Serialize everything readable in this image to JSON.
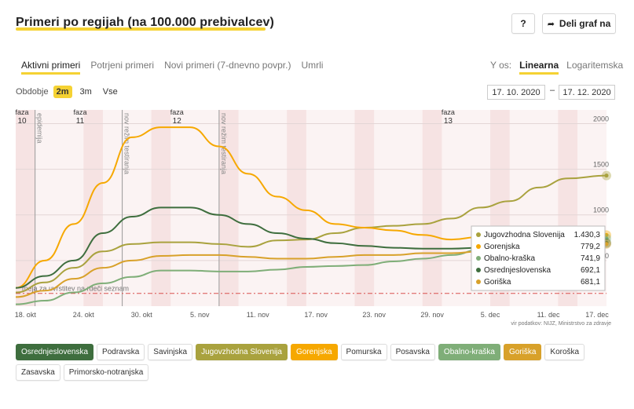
{
  "header": {
    "title": "Primeri po regijah (na 100.000 prebivalcev)",
    "help_label": "?",
    "share_label": "Deli graf na"
  },
  "tabs": [
    "Aktivni primeri",
    "Potrjeni primeri",
    "Novi primeri (7-dnevno povpr.)",
    "Umrli"
  ],
  "active_tab": 0,
  "y_axis": {
    "label": "Y os:",
    "options": [
      "Linearna",
      "Logaritemska"
    ],
    "active": 0
  },
  "period": {
    "label": "Obdobje",
    "options": [
      "2m",
      "3m",
      "Vse"
    ],
    "active": 0,
    "from": "17. 10. 2020",
    "dash": "–",
    "to": "17. 12. 2020"
  },
  "chart_data": {
    "type": "line",
    "x": [
      "2020-10-17",
      "2020-10-20",
      "2020-10-23",
      "2020-10-26",
      "2020-10-29",
      "2020-11-01",
      "2020-11-04",
      "2020-11-07",
      "2020-11-10",
      "2020-11-13",
      "2020-11-16",
      "2020-11-19",
      "2020-11-22",
      "2020-11-25",
      "2020-11-28",
      "2020-12-01",
      "2020-12-04",
      "2020-12-07",
      "2020-12-10",
      "2020-12-13",
      "2020-12-17"
    ],
    "x_ticks": [
      "18. okt",
      "24. okt",
      "30. okt",
      "5. nov",
      "11. nov",
      "17. nov",
      "23. nov",
      "29. nov",
      "5. dec",
      "11. dec",
      "17. dec"
    ],
    "y_ticks": [
      500,
      1000,
      1500,
      2000
    ],
    "ylim": [
      0,
      2150
    ],
    "series": [
      {
        "name": "Jugovzhodna Slovenija",
        "color": "#a9a23e",
        "values": [
          150,
          260,
          420,
          600,
          680,
          700,
          700,
          680,
          650,
          720,
          730,
          800,
          860,
          880,
          900,
          960,
          1080,
          1150,
          1300,
          1400,
          1430.3
        ]
      },
      {
        "name": "Gorenjska",
        "color": "#f6a800",
        "values": [
          200,
          500,
          900,
          1350,
          1850,
          1960,
          1960,
          1750,
          1450,
          1200,
          1050,
          900,
          860,
          830,
          780,
          730,
          760,
          770,
          760,
          790,
          779.2
        ]
      },
      {
        "name": "Obalno-kraška",
        "color": "#7fae78",
        "values": [
          20,
          60,
          150,
          250,
          320,
          390,
          390,
          380,
          380,
          400,
          430,
          440,
          450,
          490,
          520,
          560,
          620,
          650,
          700,
          720,
          741.9
        ]
      },
      {
        "name": "Osrednjeslovenska",
        "color": "#3e6e3e",
        "values": [
          200,
          330,
          500,
          800,
          980,
          1080,
          1080,
          1000,
          900,
          800,
          740,
          690,
          660,
          640,
          630,
          630,
          640,
          650,
          660,
          680,
          692.1
        ]
      },
      {
        "name": "Goriška",
        "color": "#d8a12a",
        "values": [
          100,
          170,
          300,
          420,
          500,
          550,
          560,
          560,
          540,
          520,
          520,
          540,
          560,
          560,
          580,
          580,
          600,
          620,
          640,
          660,
          681.1
        ]
      }
    ],
    "threshold": {
      "label": "meja za uvrstitev na rdeči seznam",
      "value": 140
    },
    "phases": [
      {
        "label1": "faza",
        "label2": "10",
        "date": "2020-10-17"
      },
      {
        "label1": "faza",
        "label2": "11",
        "date": "2020-10-23"
      },
      {
        "label1": "faza",
        "label2": "12",
        "date": "2020-11-02"
      },
      {
        "label1": "faza",
        "label2": "13",
        "date": "2020-11-30"
      }
    ],
    "events": [
      {
        "label": "epidemija",
        "date": "2020-10-19"
      },
      {
        "label": "nov režim testiranja",
        "date": "2020-10-28"
      },
      {
        "label": "nov režim testiranja",
        "date": "2020-11-07"
      }
    ],
    "source": "vir podatkov: NIJZ, Ministrstvo za zdravje"
  },
  "tooltip": {
    "rows": [
      {
        "name": "Jugovzhodna Slovenija",
        "value": "1.430,3",
        "color": "#a9a23e"
      },
      {
        "name": "Gorenjska",
        "value": "779,2",
        "color": "#f6a800"
      },
      {
        "name": "Obalno-kraška",
        "value": "741,9",
        "color": "#7fae78"
      },
      {
        "name": "Osrednjeslovenska",
        "value": "692,1",
        "color": "#3e6e3e"
      },
      {
        "name": "Goriška",
        "value": "681,1",
        "color": "#d8a12a"
      }
    ]
  },
  "legend": [
    {
      "label": "Osrednjeslovenska",
      "on": true,
      "color": "#3e6e3e"
    },
    {
      "label": "Podravska",
      "on": false
    },
    {
      "label": "Savinjska",
      "on": false
    },
    {
      "label": "Jugovzhodna Slovenija",
      "on": true,
      "color": "#a9a23e"
    },
    {
      "label": "Gorenjska",
      "on": true,
      "color": "#f6a800"
    },
    {
      "label": "Pomurska",
      "on": false
    },
    {
      "label": "Posavska",
      "on": false
    },
    {
      "label": "Obalno-kraška",
      "on": true,
      "color": "#7fae78"
    },
    {
      "label": "Goriška",
      "on": true,
      "color": "#d8a12a"
    },
    {
      "label": "Koroška",
      "on": false
    },
    {
      "label": "Zasavska",
      "on": false
    },
    {
      "label": "Primorsko-notranjska",
      "on": false
    }
  ]
}
